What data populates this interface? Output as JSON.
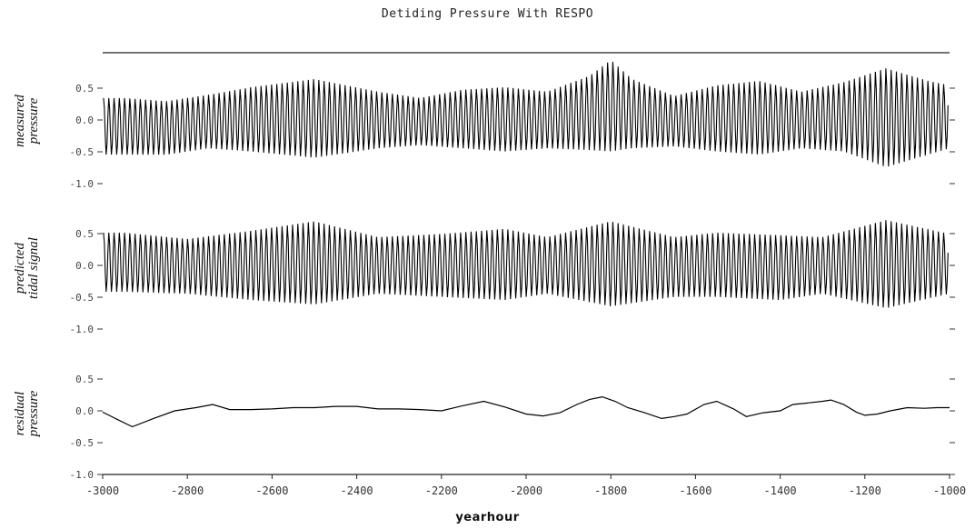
{
  "chart_data": {
    "type": "line",
    "title": "Detiding Pressure With RESPO",
    "xlabel": "yearhour",
    "xlim": [
      -3000,
      -1000
    ],
    "x_ticks": [
      -3000,
      -2800,
      -2600,
      -2400,
      -2200,
      -2000,
      -1800,
      -1600,
      -1400,
      -1200,
      -1000
    ],
    "x_tick_labels": [
      "-3000",
      "-2800",
      "-2600",
      "-2400",
      "-2200",
      "-2000",
      "-1800",
      "-1600",
      "-1400",
      "-1200",
      "-1000"
    ],
    "grid": false,
    "panels": [
      {
        "ylabel": [
          "measured",
          "pressure"
        ],
        "ylim": [
          -1.0,
          1.0
        ],
        "y_ticks": [
          -1.0,
          -0.5,
          0.0,
          0.5
        ],
        "y_tick_labels": [
          "-1.0",
          "-0.5",
          "0.0",
          "0.5"
        ],
        "series": [
          {
            "kind": "oscillating",
            "period": 12.4,
            "env_x": [
              -2950,
              -2850,
              -2750,
              -2650,
              -2500,
              -2350,
              -2250,
              -2150,
              -2050,
              -1950,
              -1850,
              -1800,
              -1750,
              -1650,
              -1550,
              -1450,
              -1350,
              -1250,
              -1150,
              -1050,
              -1000
            ],
            "env_upper": [
              0.35,
              0.3,
              0.4,
              0.52,
              0.65,
              0.45,
              0.35,
              0.48,
              0.52,
              0.45,
              0.7,
              0.95,
              0.65,
              0.38,
              0.55,
              0.62,
              0.45,
              0.6,
              0.82,
              0.62,
              0.55
            ],
            "env_lower": [
              -0.55,
              -0.55,
              -0.45,
              -0.5,
              -0.6,
              -0.45,
              -0.4,
              -0.45,
              -0.5,
              -0.45,
              -0.48,
              -0.5,
              -0.45,
              -0.42,
              -0.5,
              -0.55,
              -0.45,
              -0.5,
              -0.75,
              -0.55,
              -0.45
            ]
          }
        ]
      },
      {
        "ylabel": [
          "predicted",
          "tidal signal"
        ],
        "ylim": [
          -1.0,
          1.0
        ],
        "y_ticks": [
          -1.0,
          -0.5,
          0.0,
          0.5
        ],
        "y_tick_labels": [
          "-1.0",
          "-0.5",
          "0.0",
          "0.5"
        ],
        "series": [
          {
            "kind": "oscillating",
            "period": 12.4,
            "env_x": [
              -2950,
              -2800,
              -2650,
              -2500,
              -2350,
              -2200,
              -2050,
              -1950,
              -1800,
              -1650,
              -1550,
              -1400,
              -1300,
              -1150,
              -1000
            ],
            "env_upper": [
              0.52,
              0.42,
              0.55,
              0.7,
              0.45,
              0.5,
              0.58,
              0.45,
              0.7,
              0.45,
              0.52,
              0.48,
              0.45,
              0.72,
              0.5
            ],
            "env_lower": [
              -0.42,
              -0.45,
              -0.55,
              -0.62,
              -0.45,
              -0.5,
              -0.55,
              -0.45,
              -0.65,
              -0.5,
              -0.5,
              -0.55,
              -0.45,
              -0.68,
              -0.45
            ]
          }
        ]
      },
      {
        "ylabel": [
          "residual",
          "pressure"
        ],
        "ylim": [
          -1.0,
          1.0
        ],
        "y_ticks": [
          -1.0,
          -0.5,
          0.0,
          0.5
        ],
        "y_tick_labels": [
          "-1.0",
          "-0.5",
          "0.0",
          "0.5"
        ],
        "series": [
          {
            "kind": "line",
            "x": [
              -3000,
              -2970,
              -2930,
              -2880,
              -2830,
              -2780,
              -2740,
              -2700,
              -2650,
              -2600,
              -2550,
              -2500,
              -2450,
              -2400,
              -2350,
              -2300,
              -2250,
              -2200,
              -2150,
              -2100,
              -2050,
              -2000,
              -1960,
              -1920,
              -1880,
              -1850,
              -1820,
              -1790,
              -1760,
              -1720,
              -1680,
              -1650,
              -1620,
              -1580,
              -1550,
              -1510,
              -1480,
              -1440,
              -1400,
              -1370,
              -1340,
              -1300,
              -1280,
              -1250,
              -1220,
              -1200,
              -1170,
              -1140,
              -1100,
              -1060,
              -1030,
              -1000
            ],
            "y": [
              -0.02,
              -0.12,
              -0.25,
              -0.12,
              0.0,
              0.05,
              0.1,
              0.02,
              0.02,
              0.03,
              0.05,
              0.05,
              0.07,
              0.07,
              0.03,
              0.03,
              0.02,
              0.0,
              0.08,
              0.15,
              0.06,
              -0.05,
              -0.08,
              -0.03,
              0.1,
              0.18,
              0.22,
              0.15,
              0.05,
              -0.03,
              -0.12,
              -0.09,
              -0.05,
              0.1,
              0.15,
              0.03,
              -0.09,
              -0.03,
              0.0,
              0.1,
              0.12,
              0.15,
              0.17,
              0.1,
              -0.02,
              -0.07,
              -0.05,
              0.0,
              0.05,
              0.04,
              0.05,
              0.05
            ]
          }
        ]
      }
    ]
  }
}
